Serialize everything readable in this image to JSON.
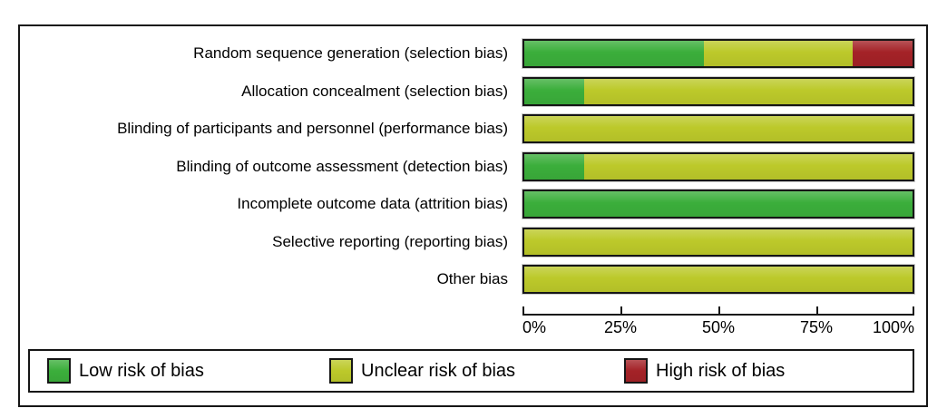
{
  "chart_data": {
    "type": "bar",
    "variant": "horizontal-stacked",
    "title": "",
    "xlabel": "",
    "ylabel": "",
    "categories": [
      "Random sequence generation (selection bias)",
      "Allocation concealment (selection bias)",
      "Blinding of participants and personnel (performance bias)",
      "Blinding of outcome assessment (detection bias)",
      "Incomplete outcome data (attrition bias)",
      "Selective reporting (reporting bias)",
      "Other bias"
    ],
    "series": [
      {
        "name": "Low risk of bias",
        "color": "#3BAE3B",
        "values": [
          46.2,
          15.4,
          0,
          15.4,
          100,
          0,
          0
        ]
      },
      {
        "name": "Unclear risk of bias",
        "color": "#BCC92A",
        "values": [
          38.4,
          84.6,
          100,
          84.6,
          0,
          100,
          100
        ]
      },
      {
        "name": "High risk of bias",
        "color": "#A42227",
        "values": [
          15.4,
          0,
          0,
          0,
          0,
          0,
          0
        ]
      }
    ],
    "x_axis": {
      "range": [
        0,
        100
      ],
      "tick_labels": [
        "0%",
        "25%",
        "50%",
        "75%",
        "100%"
      ],
      "unit": "%"
    },
    "legend": {
      "position": "bottom",
      "items": [
        "Low risk of bias",
        "Unclear risk of bias",
        "High risk of bias"
      ]
    },
    "grid": false,
    "bar_border_color": "#161616"
  }
}
